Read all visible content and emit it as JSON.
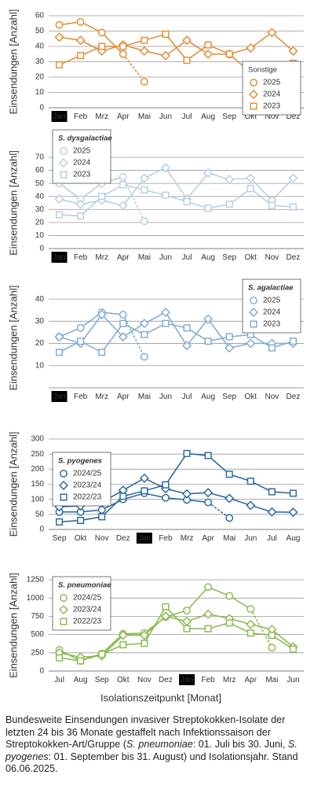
{
  "chart_data": [
    {
      "type": "line",
      "legend_title": "Sonstige",
      "legend_title_italic": false,
      "ylabel": "Einsendungen [Anzahl]",
      "categories": [
        "Jan",
        "Feb",
        "Mrz",
        "Apr",
        "Mai",
        "Jun",
        "Jul",
        "Aug",
        "Sep",
        "Okt",
        "Nov",
        "Dez"
      ],
      "highlight_category": "Jan",
      "ylim": [
        0,
        60
      ],
      "yticks": [
        0,
        10,
        20,
        30,
        40,
        50,
        60
      ],
      "grid": true,
      "legend": "lower right",
      "series": [
        {
          "name": "2025",
          "color": "#e08a2c",
          "marker": "circle",
          "values": [
            54,
            56,
            49,
            35,
            17,
            null,
            null,
            null,
            null,
            null,
            null,
            null
          ]
        },
        {
          "name": "2024",
          "color": "#e08a2c",
          "marker": "diamond",
          "values": [
            46,
            44,
            37,
            41,
            37,
            34,
            44,
            35,
            35,
            39,
            49,
            37
          ]
        },
        {
          "name": "2023",
          "color": "#e08a2c",
          "marker": "square",
          "values": [
            28,
            34,
            40,
            40,
            44,
            48,
            31,
            41,
            35,
            23,
            18,
            29
          ]
        }
      ]
    },
    {
      "type": "line",
      "legend_title": "S. dysgalactiae",
      "legend_title_italic": true,
      "ylabel": "Einsendungen [Anzahl]",
      "categories": [
        "Jan",
        "Feb",
        "Mrz",
        "Apr",
        "Mai",
        "Jun",
        "Jul",
        "Aug",
        "Sep",
        "Okt",
        "Nov",
        "Dez"
      ],
      "highlight_category": "Jan",
      "ylim": [
        0,
        70
      ],
      "yticks": [
        0,
        10,
        20,
        30,
        40,
        50,
        60,
        70
      ],
      "grid": true,
      "legend": "upper left",
      "series": [
        {
          "name": "2025",
          "color": "#b4cde3",
          "marker": "circle",
          "values": [
            50,
            38,
            50,
            55,
            21,
            null,
            null,
            null,
            null,
            null,
            null,
            null
          ]
        },
        {
          "name": "2024",
          "color": "#b4cde3",
          "marker": "diamond",
          "values": [
            38,
            34,
            37,
            33,
            54,
            62,
            38,
            58,
            53,
            54,
            37,
            54
          ]
        },
        {
          "name": "2023",
          "color": "#b4cde3",
          "marker": "square",
          "values": [
            26,
            25,
            40,
            49,
            45,
            41,
            36,
            31,
            34,
            46,
            33,
            32
          ]
        }
      ]
    },
    {
      "type": "line",
      "legend_title": "S. agalactiae",
      "legend_title_italic": true,
      "ylabel": "Einsendungen [Anzahl]",
      "categories": [
        "Jan",
        "Feb",
        "Mrz",
        "Apr",
        "Mai",
        "Jun",
        "Jul",
        "Aug",
        "Sep",
        "Okt",
        "Nov",
        "Dez"
      ],
      "highlight_category": "Jan",
      "ylim": [
        0,
        45
      ],
      "yticks": [
        10,
        20,
        30,
        40
      ],
      "grid": true,
      "legend": "upper right",
      "series": [
        {
          "name": "2025",
          "color": "#7ea8d1",
          "marker": "circle",
          "values": [
            23,
            27,
            34,
            33,
            14,
            null,
            null,
            null,
            null,
            null,
            null,
            null
          ]
        },
        {
          "name": "2024",
          "color": "#7ea8d1",
          "marker": "diamond",
          "values": [
            23,
            20,
            33,
            23,
            29,
            34,
            19,
            31,
            18,
            20,
            20,
            20
          ]
        },
        {
          "name": "2023",
          "color": "#7ea8d1",
          "marker": "square",
          "values": [
            16,
            21,
            16,
            29,
            24,
            29,
            27,
            21,
            23,
            24,
            18,
            21
          ]
        }
      ]
    },
    {
      "type": "line",
      "legend_title": "S. pyogenes",
      "legend_title_italic": true,
      "ylabel": "Einsendungen [Anzahl]",
      "categories": [
        "Sep",
        "Okt",
        "Nov",
        "Dez",
        "Jan",
        "Feb",
        "Mrz",
        "Apr",
        "Mai",
        "Jun",
        "Jul",
        "Aug"
      ],
      "highlight_category": "Jan",
      "ylim": [
        0,
        300
      ],
      "yticks": [
        0,
        50,
        100,
        150,
        200,
        250,
        300
      ],
      "grid": true,
      "legend": "upper left",
      "series": [
        {
          "name": "2024/25",
          "color": "#22649e",
          "marker": "circle",
          "values": [
            58,
            58,
            65,
            100,
            120,
            105,
            98,
            90,
            38,
            null,
            null,
            null
          ]
        },
        {
          "name": "2023/24",
          "color": "#22649e",
          "marker": "diamond",
          "values": [
            75,
            78,
            90,
            130,
            170,
            135,
            118,
            122,
            103,
            80,
            58,
            57
          ]
        },
        {
          "name": "2022/23",
          "color": "#22649e",
          "marker": "square",
          "values": [
            25,
            30,
            42,
            110,
            128,
            148,
            252,
            245,
            183,
            160,
            125,
            120
          ]
        }
      ]
    },
    {
      "type": "line",
      "legend_title": "S. pneumoniae",
      "legend_title_italic": true,
      "ylabel": "Einsendungen [Anzahl]",
      "categories": [
        "Jul",
        "Aug",
        "Sep",
        "Okt",
        "Nov",
        "Dez",
        "Jan",
        "Feb",
        "Mrz",
        "Apr",
        "Mai",
        "Jun"
      ],
      "highlight_category": "Jan",
      "ylim": [
        0,
        1250
      ],
      "yticks": [
        0,
        250,
        500,
        750,
        1000,
        1250
      ],
      "grid": true,
      "legend": "upper left",
      "series": [
        {
          "name": "2024/25",
          "color": "#86b84a",
          "marker": "circle",
          "values": [
            290,
            140,
            240,
            510,
            520,
            740,
            830,
            1150,
            1030,
            850,
            320,
            null
          ]
        },
        {
          "name": "2023/24",
          "color": "#86b84a",
          "marker": "diamond",
          "values": [
            250,
            190,
            210,
            490,
            490,
            750,
            680,
            780,
            720,
            640,
            570,
            330
          ]
        },
        {
          "name": "2022/23",
          "color": "#86b84a",
          "marker": "square",
          "values": [
            180,
            140,
            230,
            360,
            380,
            880,
            580,
            580,
            660,
            520,
            490,
            300
          ]
        }
      ]
    }
  ],
  "xlabel": "Isolationszeitpunkt [Monat]",
  "caption": [
    "Bundesweite Einsendungen invasiver Streptokokken-Isolate der letzten 24 bis 36 Monate gestaffelt nach Infektionssaison der Streptokokken-Art/Gruppe (",
    "S. pneumoniae",
    ": 01. Juli bis 30. Juni, ",
    "S. pyogenes",
    ": 01. September bis 31. August) und Isolationsjahr. Stand 06.06.2025."
  ]
}
